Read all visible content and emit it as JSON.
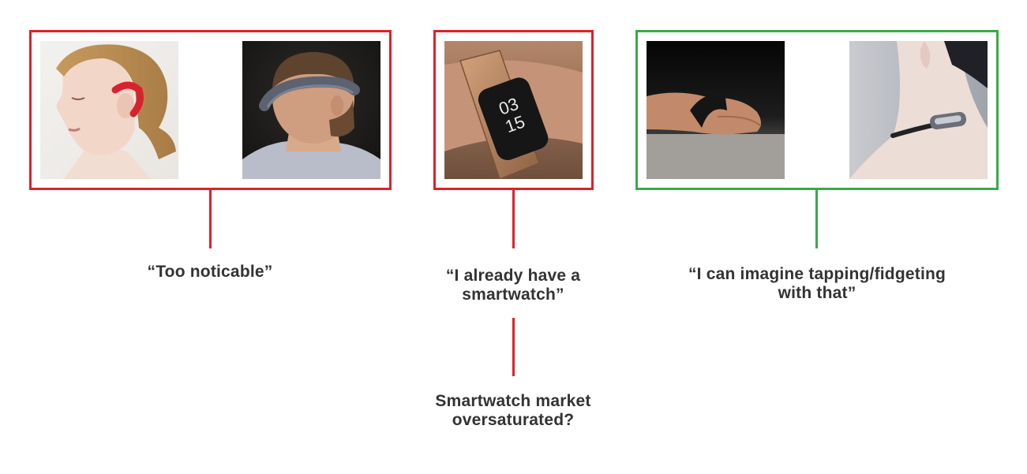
{
  "groups": [
    {
      "border_color": "#e0202a",
      "images": [
        {
          "icon": "woman-bone-conduction-earpiece-photo"
        },
        {
          "icon": "man-headband-wearable-photo"
        }
      ],
      "quote": "“Too noticable”"
    },
    {
      "border_color": "#e0202a",
      "images": [
        {
          "icon": "fitness-band-on-wrist-photo",
          "display_time_hours": "03",
          "display_time_minutes": "15"
        }
      ],
      "quote_line1": "“I already have a",
      "quote_line2": "smartwatch”",
      "followup_line1": "Smartwatch market",
      "followup_line2": "oversaturated?"
    },
    {
      "border_color": "#3aaa48",
      "images": [
        {
          "icon": "finger-ring-wearable-photo"
        },
        {
          "icon": "neck-collar-wearable-photo"
        }
      ],
      "quote_line1": "“I can imagine tapping/fidgeting",
      "quote_line2": "with that”"
    }
  ]
}
